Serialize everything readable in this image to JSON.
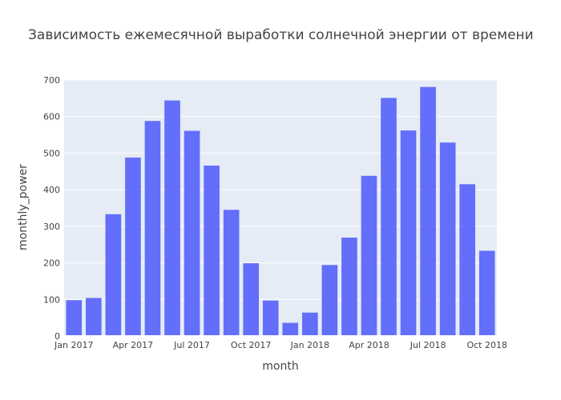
{
  "chart_data": {
    "type": "bar",
    "title": "Зависимость ежемесячной выработки солнечной энергии от времени",
    "xlabel": "month",
    "ylabel": "monthly_power",
    "x": [
      "2017-01",
      "2017-02",
      "2017-03",
      "2017-04",
      "2017-05",
      "2017-06",
      "2017-07",
      "2017-08",
      "2017-09",
      "2017-10",
      "2017-11",
      "2017-12",
      "2018-01",
      "2018-02",
      "2018-03",
      "2018-04",
      "2018-05",
      "2018-06",
      "2018-07",
      "2018-08",
      "2018-09",
      "2018-10"
    ],
    "values": [
      98,
      104,
      333,
      488,
      588,
      644,
      561,
      466,
      345,
      199,
      97,
      36,
      64,
      194,
      269,
      438,
      651,
      562,
      681,
      529,
      415,
      233
    ],
    "ylim": [
      0,
      700
    ],
    "yticks": [
      0,
      100,
      200,
      300,
      400,
      500,
      600,
      700
    ],
    "xticks": [
      {
        "x": "2017-01",
        "label": "Jan 2017"
      },
      {
        "x": "2017-04",
        "label": "Apr 2017"
      },
      {
        "x": "2017-07",
        "label": "Jul 2017"
      },
      {
        "x": "2017-10",
        "label": "Oct 2017"
      },
      {
        "x": "2018-01",
        "label": "Jan 2018"
      },
      {
        "x": "2018-04",
        "label": "Apr 2018"
      },
      {
        "x": "2018-07",
        "label": "Jul 2018"
      },
      {
        "x": "2018-10",
        "label": "Oct 2018"
      }
    ],
    "grid": true,
    "colors": {
      "bar": "#636efa",
      "plot_background": "#e5ecf6",
      "grid": "#ffffff"
    }
  }
}
